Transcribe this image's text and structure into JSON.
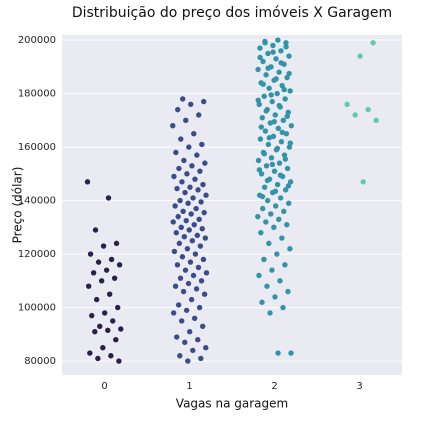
{
  "chart_data": {
    "type": "strip",
    "title": "Distribuição do preço dos imóveis X Garagem",
    "xlabel": "Vagas na garagem",
    "ylabel": "Preço (dólar)",
    "categories": [
      "0",
      "1",
      "2",
      "3"
    ],
    "colors": [
      "#2d1f4a",
      "#3b4c8c",
      "#3194a8",
      "#5fcbad"
    ],
    "values": [
      [
        147000,
        141000,
        129000,
        124000,
        123000,
        120000,
        118000,
        117000,
        116000,
        114000,
        113000,
        111000,
        110000,
        108000,
        105000,
        103000,
        100000,
        98000,
        97000,
        95000,
        93000,
        92000,
        91500,
        91000,
        88000,
        85000,
        83000,
        82000,
        81000,
        80000
      ],
      [
        178000,
        177000,
        176000,
        174000,
        172000,
        170000,
        168000,
        165000,
        163000,
        161000,
        160000,
        158000,
        157000,
        155000,
        154000,
        153000,
        152000,
        151000,
        150000,
        149000,
        148000,
        147000,
        146000,
        145000,
        144500,
        144000,
        143000,
        142000,
        141000,
        140000,
        139500,
        139000,
        138000,
        137000,
        136000,
        135500,
        135000,
        134000,
        133000,
        132500,
        132000,
        131000,
        130000,
        129500,
        129000,
        128000,
        127000,
        126500,
        126000,
        125000,
        124000,
        123000,
        122000,
        121000,
        120000,
        119000,
        118000,
        117000,
        116000,
        115000,
        114000,
        113000,
        112000,
        111000,
        110000,
        109000,
        108000,
        107000,
        106000,
        105000,
        103000,
        101000,
        100000,
        99000,
        98000,
        96000,
        95000,
        93000,
        91000,
        89000,
        88000,
        87000,
        85000,
        84000,
        82000,
        81000,
        80000
      ],
      [
        200000,
        199500,
        199000,
        198000,
        197000,
        196000,
        195000,
        194000,
        193000,
        192000,
        191000,
        190000,
        189000,
        188000,
        187000,
        186000,
        185000,
        184000,
        183000,
        182000,
        181000,
        180000,
        179000,
        178000,
        177000,
        176000,
        175000,
        174000,
        173000,
        172000,
        171000,
        170000,
        169000,
        168000,
        167000,
        166000,
        165000,
        164000,
        163000,
        162000,
        161000,
        160000,
        159000,
        158000,
        157000,
        156000,
        155000,
        154000,
        153000,
        152000,
        151000,
        150000,
        149000,
        148000,
        147000,
        146000,
        145000,
        144000,
        143000,
        142000,
        141000,
        140000,
        139000,
        138000,
        137000,
        136000,
        135000,
        134000,
        133000,
        132000,
        131000,
        130000,
        128000,
        126000,
        124000,
        122000,
        120000,
        118000,
        116000,
        114000,
        112000,
        110000,
        108000,
        106000,
        104000,
        102000,
        100000,
        98000,
        83000,
        83000,
        199000,
        197500,
        195500,
        193500,
        191500,
        189500,
        187500,
        185500,
        183500,
        181500,
        179500,
        177500,
        175500,
        173500,
        171500,
        169500,
        167500,
        165500,
        163500,
        161500,
        159500,
        157500,
        155500,
        153500,
        151500,
        149500,
        147500,
        145500,
        143500,
        141500
      ],
      [
        199000,
        194000,
        176000,
        174000,
        172000,
        170000,
        147000
      ]
    ],
    "ylim": [
      74800,
      201900
    ],
    "yticks": [
      80000,
      100000,
      120000,
      140000,
      160000,
      180000,
      200000
    ],
    "grid": true
  }
}
